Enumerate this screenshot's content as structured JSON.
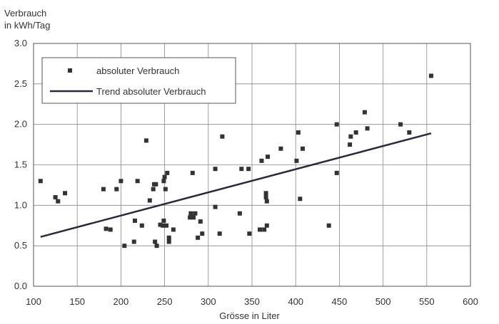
{
  "chart_data": {
    "type": "scatter",
    "title": "",
    "ylabel": [
      "Verbrauch",
      "in kWh/Tag"
    ],
    "xlabel": "Grösse in Liter",
    "xlim": [
      100,
      600
    ],
    "ylim": [
      0,
      3
    ],
    "x_ticks": [
      100,
      150,
      200,
      250,
      300,
      350,
      400,
      450,
      500,
      550,
      600
    ],
    "x_tick_labels": [
      "100",
      "150",
      "200",
      "250",
      "300",
      "350",
      "400",
      "450",
      "500",
      "550",
      "600"
    ],
    "y_ticks": [
      0,
      0.5,
      1,
      1.5,
      2,
      2.5,
      3
    ],
    "y_tick_labels": [
      "0.0",
      "0.5",
      "1.0",
      "1.5",
      "2.0",
      "2.5",
      "3.0"
    ],
    "grid": true,
    "legend_position": "top-left",
    "series": [
      {
        "name": "absoluter Verbrauch",
        "kind": "scatter",
        "marker": "square",
        "color": "#333333",
        "points": [
          [
            108,
            1.3
          ],
          [
            125,
            1.1
          ],
          [
            128,
            1.05
          ],
          [
            136,
            1.15
          ],
          [
            180,
            1.2
          ],
          [
            183,
            0.71
          ],
          [
            188,
            0.7
          ],
          [
            195,
            1.2
          ],
          [
            200,
            1.3
          ],
          [
            204,
            0.5
          ],
          [
            215,
            0.55
          ],
          [
            216,
            0.81
          ],
          [
            219,
            1.3
          ],
          [
            224,
            0.75
          ],
          [
            229,
            1.8
          ],
          [
            233,
            1.06
          ],
          [
            237,
            1.2
          ],
          [
            238,
            1.26
          ],
          [
            239,
            0.55
          ],
          [
            240,
            1.26
          ],
          [
            241,
            0.5
          ],
          [
            245,
            0.76
          ],
          [
            248,
            0.75
          ],
          [
            249,
            1.3
          ],
          [
            249,
            0.81
          ],
          [
            250,
            1.35
          ],
          [
            251,
            1.2
          ],
          [
            252,
            0.75
          ],
          [
            253,
            1.4
          ],
          [
            255,
            0.6
          ],
          [
            255,
            0.55
          ],
          [
            260,
            0.7
          ],
          [
            279,
            0.85
          ],
          [
            280,
            0.9
          ],
          [
            282,
            1.4
          ],
          [
            283,
            0.85
          ],
          [
            285,
            0.9
          ],
          [
            288,
            0.6
          ],
          [
            291,
            0.8
          ],
          [
            293,
            0.65
          ],
          [
            308,
            1.45
          ],
          [
            308,
            0.98
          ],
          [
            313,
            0.65
          ],
          [
            316,
            1.85
          ],
          [
            336,
            0.9
          ],
          [
            338,
            1.45
          ],
          [
            346,
            1.45
          ],
          [
            347,
            0.65
          ],
          [
            359,
            0.7
          ],
          [
            361,
            1.55
          ],
          [
            364,
            0.7
          ],
          [
            366,
            1.15
          ],
          [
            366,
            1.1
          ],
          [
            367,
            1.05
          ],
          [
            367,
            0.75
          ],
          [
            368,
            1.6
          ],
          [
            383,
            1.7
          ],
          [
            401,
            1.55
          ],
          [
            403,
            1.9
          ],
          [
            405,
            1.08
          ],
          [
            408,
            1.7
          ],
          [
            438,
            0.75
          ],
          [
            447,
            2.0
          ],
          [
            447,
            1.4
          ],
          [
            462,
            1.75
          ],
          [
            463,
            1.85
          ],
          [
            469,
            1.9
          ],
          [
            479,
            2.15
          ],
          [
            482,
            1.95
          ],
          [
            520,
            2.0
          ],
          [
            530,
            1.9
          ],
          [
            555,
            2.6
          ]
        ]
      },
      {
        "name": "Trend absoluter Verbrauch",
        "kind": "line",
        "color": "#2b2a3a",
        "points": [
          [
            108,
            0.61
          ],
          [
            555,
            1.89
          ]
        ]
      }
    ]
  }
}
